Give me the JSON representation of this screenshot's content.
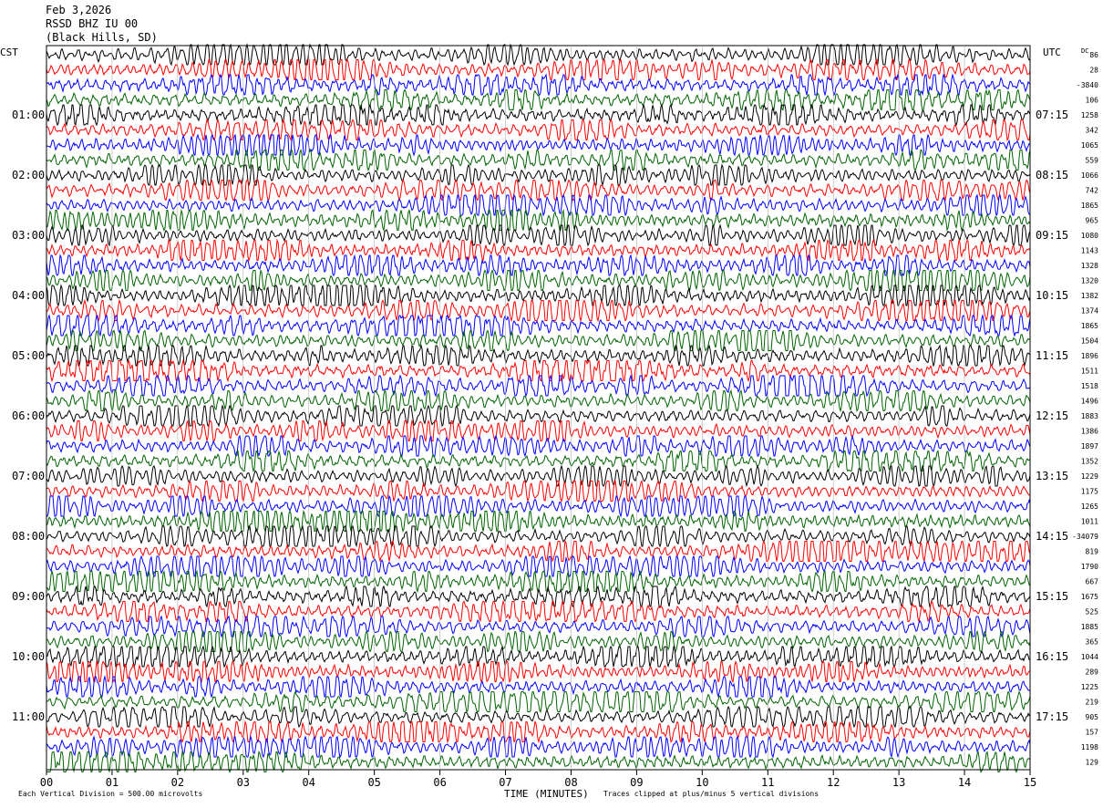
{
  "header": {
    "date": "Feb 3,2026",
    "station": "RSSD BHZ IU 00",
    "location": "(Black Hills, SD)"
  },
  "left_tz": "CST",
  "right_tz": "UTC",
  "dc_label": "DC",
  "footer": {
    "scale_note": "Each Vertical Division =  500.00 microvolts",
    "clip_note": "Traces clipped at plus/minus 5 vertical divisions"
  },
  "colors": {
    "trace_cycle": [
      "#000000",
      "#ff0000",
      "#0000ff",
      "#006400"
    ]
  },
  "chart_data": {
    "type": "line",
    "title": "RSSD BHZ IU 00",
    "xlabel": "TIME (MINUTES)",
    "ylabel": "",
    "xlim": [
      0,
      15
    ],
    "x_ticks": [
      "00",
      "01",
      "02",
      "03",
      "04",
      "05",
      "06",
      "07",
      "08",
      "09",
      "10",
      "11",
      "12",
      "13",
      "14",
      "15"
    ],
    "trace_count": 48,
    "minutes_per_trace": 15,
    "left_hour_labels": [
      "01:00",
      "02:00",
      "03:00",
      "04:00",
      "05:00",
      "06:00",
      "07:00",
      "08:00",
      "09:00",
      "10:00",
      "11:00"
    ],
    "right_hour_labels": [
      "07:15",
      "08:15",
      "09:15",
      "10:15",
      "11:15",
      "12:15",
      "13:15",
      "14:15",
      "15:15",
      "16:15",
      "17:15"
    ],
    "dc_offsets": [
      "86",
      "28",
      "-3840",
      "106",
      "1258",
      "342",
      "1065",
      "559",
      "1066",
      "742",
      "1865",
      "965",
      "1080",
      "1143",
      "1328",
      "1320",
      "1382",
      "1374",
      "1865",
      "1504",
      "1896",
      "1511",
      "1518",
      "1496",
      "1883",
      "1386",
      "1897",
      "1352",
      "1229",
      "1175",
      "1265",
      "1011",
      "-34079",
      "819",
      "1790",
      "667",
      "1675",
      "525",
      "1885",
      "365",
      "1044",
      "289",
      "1225",
      "219",
      "905",
      "157",
      "1198",
      "129"
    ]
  }
}
